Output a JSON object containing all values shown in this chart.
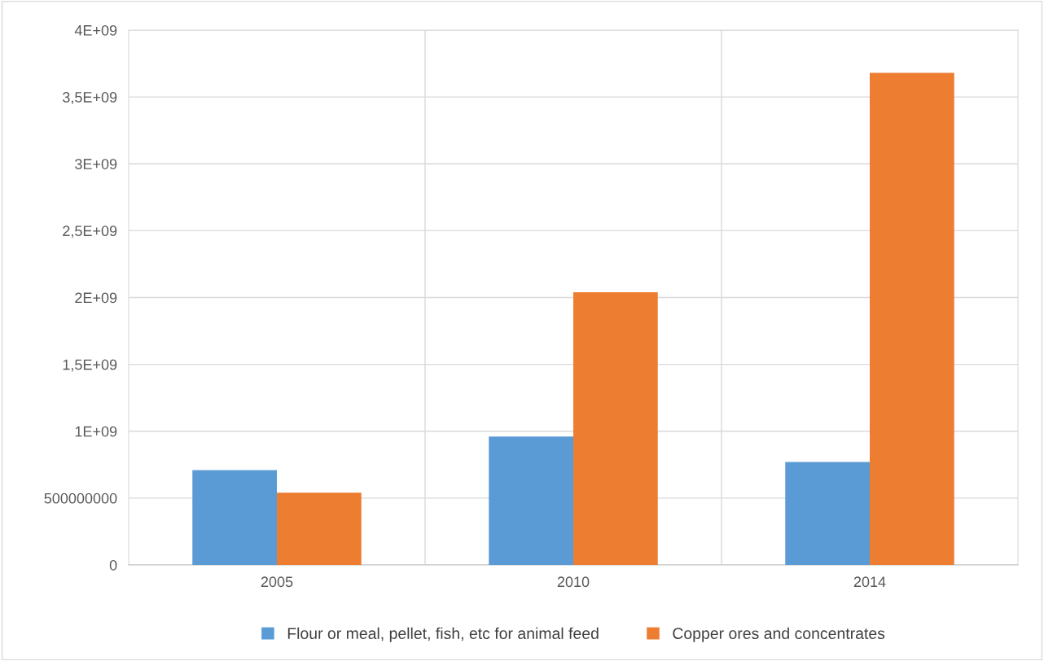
{
  "chart_data": {
    "type": "bar",
    "categories": [
      "2005",
      "2010",
      "2014"
    ],
    "series": [
      {
        "name": "Flour or meal, pellet, fish, etc for animal feed",
        "color": "#5b9bd5",
        "values": [
          710000000,
          960000000,
          770000000
        ]
      },
      {
        "name": "Copper ores and concentrates",
        "color": "#ed7d31",
        "values": [
          540000000,
          2040000000,
          3680000000
        ]
      }
    ],
    "ylim": [
      0,
      4000000000
    ],
    "yticks": [
      0,
      500000000,
      {
        "value": 1000000000,
        "label": "1E+09"
      },
      {
        "value": 1500000000,
        "label": "1,5E+09"
      },
      {
        "value": 2000000000,
        "label": "2E+09"
      },
      {
        "value": 2500000000,
        "label": "2,5E+09"
      },
      {
        "value": 3000000000,
        "label": "3E+09"
      },
      {
        "value": 3500000000,
        "label": "3,5E+09"
      },
      {
        "value": 4000000000,
        "label": "4E+09"
      }
    ],
    "grid": true,
    "legend": "bottom"
  }
}
